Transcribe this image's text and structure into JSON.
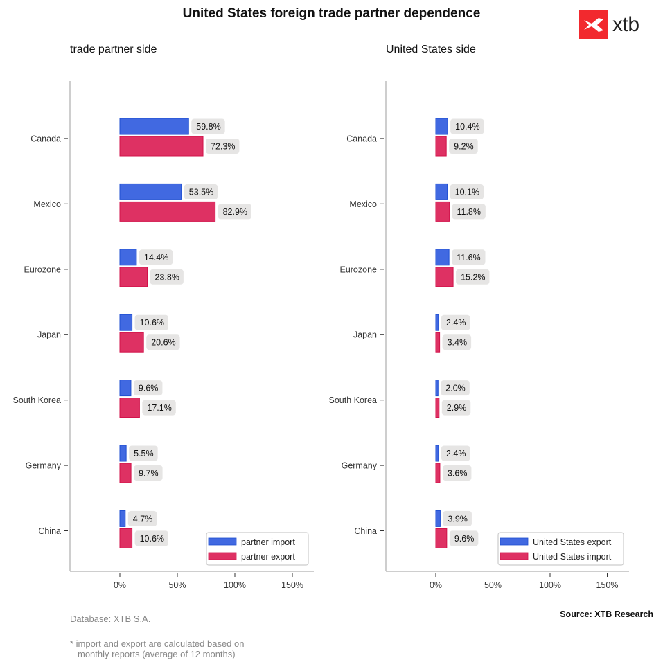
{
  "header": {
    "title": "United States foreign trade partner dependence",
    "logo_text": "xtb",
    "logo_color": "#f2292e"
  },
  "footer": {
    "database": "Database: XTB S.A.",
    "note_line1": "* import and export are calculated based on",
    "note_line2": "monthly reports (average of 12 months)",
    "source": "Source: XTB Research"
  },
  "colors": {
    "blue": "#4169e1",
    "red": "#de3163",
    "label_bg": "#e6e5e4"
  },
  "chart_data": [
    {
      "type": "bar",
      "orientation": "horizontal",
      "title": "trade partner side",
      "categories": [
        "Canada",
        "Mexico",
        "Eurozone",
        "Japan",
        "South Korea",
        "Germany",
        "China"
      ],
      "series": [
        {
          "name": "partner import",
          "color": "#4169e1",
          "values": [
            59.8,
            53.5,
            14.4,
            10.6,
            9.6,
            5.5,
            4.7
          ],
          "labels": [
            "59.8%",
            "53.5%",
            "14.4%",
            "10.6%",
            "9.6%",
            "5.5%",
            "4.7%"
          ]
        },
        {
          "name": "partner export",
          "color": "#de3163",
          "values": [
            72.3,
            82.9,
            23.8,
            20.6,
            17.1,
            9.7,
            10.6
          ],
          "labels": [
            "72.3%",
            "82.9%",
            "23.8%",
            "20.6%",
            "17.1%",
            "9.7%",
            "10.6%"
          ]
        }
      ],
      "xticks": [
        0,
        50,
        100,
        150
      ],
      "xtick_labels": [
        "0%",
        "50%",
        "100%",
        "150%"
      ],
      "xlim": [
        -43,
        170
      ],
      "xlabel": "",
      "ylabel": "",
      "legend": "bottom-right",
      "grid": false
    },
    {
      "type": "bar",
      "orientation": "horizontal",
      "title": "United States side",
      "categories": [
        "Canada",
        "Mexico",
        "Eurozone",
        "Japan",
        "South Korea",
        "Germany",
        "China"
      ],
      "series": [
        {
          "name": "United States export",
          "color": "#4169e1",
          "values": [
            10.4,
            10.1,
            11.6,
            2.4,
            2.0,
            2.4,
            3.9
          ],
          "labels": [
            "10.4%",
            "10.1%",
            "11.6%",
            "2.4%",
            "2.0%",
            "2.4%",
            "3.9%"
          ]
        },
        {
          "name": "United States import",
          "color": "#de3163",
          "values": [
            9.2,
            11.8,
            15.2,
            3.4,
            2.9,
            3.6,
            9.6
          ],
          "labels": [
            "9.2%",
            "11.8%",
            "15.2%",
            "3.4%",
            "2.9%",
            "3.6%",
            "9.6%"
          ]
        }
      ],
      "xticks": [
        0,
        50,
        100,
        150
      ],
      "xtick_labels": [
        "0%",
        "50%",
        "100%",
        "150%"
      ],
      "xlim": [
        -43,
        169
      ],
      "xlabel": "",
      "ylabel": "",
      "legend": "bottom-right",
      "grid": false
    }
  ]
}
